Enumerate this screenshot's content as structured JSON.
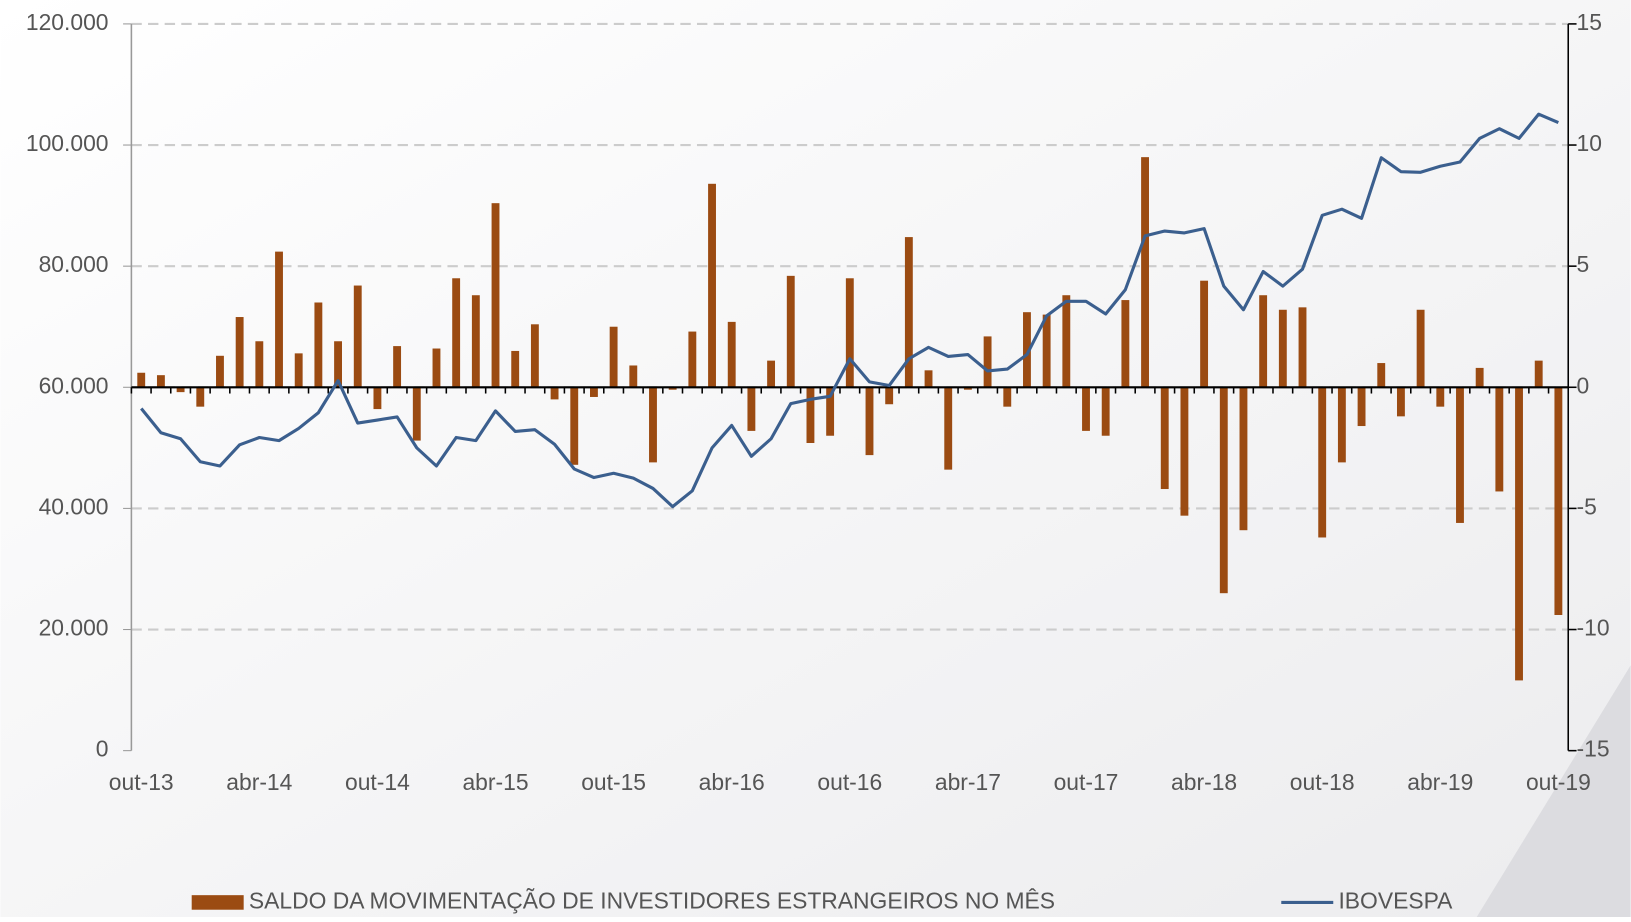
{
  "chart_data": {
    "type": "combo",
    "categories": [
      "out-13",
      null,
      null,
      null,
      null,
      null,
      "abr-14",
      null,
      null,
      null,
      null,
      null,
      "out-14",
      null,
      null,
      null,
      null,
      null,
      "abr-15",
      null,
      null,
      null,
      null,
      null,
      "out-15",
      null,
      null,
      null,
      null,
      null,
      "abr-16",
      null,
      null,
      null,
      null,
      null,
      "out-16",
      null,
      null,
      null,
      null,
      null,
      "abr-17",
      null,
      null,
      null,
      null,
      null,
      "out-17",
      null,
      null,
      null,
      null,
      null,
      "abr-18",
      null,
      null,
      null,
      null,
      null,
      "out-18",
      null,
      null,
      null,
      null,
      null,
      "abr-19",
      null,
      null,
      null,
      null,
      null,
      "out-19"
    ],
    "series": [
      {
        "name": "SALDO DA MOVIMENTAÇÃO DE INVESTIDORES ESTRANGEIROS NO MÊS",
        "type": "bar",
        "axis": "y2",
        "color": "#9b4b12",
        "values": [
          0.6,
          0.5,
          -0.2,
          -0.8,
          1.3,
          2.9,
          1.9,
          5.6,
          1.4,
          3.5,
          1.9,
          4.2,
          -0.9,
          1.7,
          -2.2,
          1.6,
          4.5,
          3.8,
          7.6,
          1.5,
          2.6,
          -0.5,
          -3.2,
          -0.4,
          2.5,
          0.9,
          -3.1,
          -0.1,
          2.3,
          8.4,
          2.7,
          -1.8,
          1.1,
          4.6,
          -2.3,
          -2.0,
          4.5,
          -2.8,
          -0.7,
          6.2,
          0.7,
          -3.4,
          -0.1,
          2.1,
          -0.8,
          3.1,
          3.0,
          3.8,
          -1.8,
          -2.0,
          3.6,
          9.5,
          -4.2,
          -5.3,
          4.4,
          -8.5,
          -5.9,
          3.8,
          3.2,
          3.3,
          -6.2,
          -3.1,
          -1.6,
          1.0,
          -1.2,
          3.2,
          -0.8,
          -5.6,
          0.8,
          -4.3,
          -12.1,
          1.1,
          -9.4
        ]
      },
      {
        "name": "IBOVESPA",
        "type": "line",
        "color": "#3b5f8e",
        "values": [
          56500,
          52500,
          51500,
          47700,
          47000,
          50500,
          51700,
          51200,
          53200,
          55800,
          61100,
          54100,
          54600,
          55100,
          50000,
          47000,
          51700,
          51200,
          56100,
          52700,
          53000,
          50600,
          46500,
          45100,
          45800,
          45000,
          43300,
          40300,
          42900,
          50000,
          53700,
          48600,
          51500,
          57300,
          58000,
          58500,
          64700,
          60900,
          60300,
          64700,
          66600,
          65100,
          65400,
          62700,
          63000,
          65400,
          71800,
          74200,
          74200,
          72100,
          76100,
          85000,
          85800,
          85500,
          86200,
          76700,
          72800,
          79100,
          76700,
          79500,
          88400,
          89400,
          87900,
          97900,
          95600,
          95500,
          96500,
          97200,
          101100,
          102700,
          101100,
          105100,
          103700
        ]
      }
    ],
    "ylim": [
      0,
      120000
    ],
    "yticks": [
      0,
      {
        "value": 20000,
        "label": "20.000"
      },
      {
        "value": 40000,
        "label": "40.000"
      },
      {
        "value": 60000,
        "label": "60.000"
      },
      {
        "value": 80000,
        "label": "80.000"
      },
      {
        "value": 100000,
        "label": "100.000"
      },
      {
        "value": 120000,
        "label": "120.000"
      }
    ],
    "y2lim": [
      -15,
      15
    ],
    "y2ticks": [
      -15,
      -10,
      -5,
      0,
      5,
      10,
      15
    ],
    "grid": true,
    "legend": "bottom"
  }
}
